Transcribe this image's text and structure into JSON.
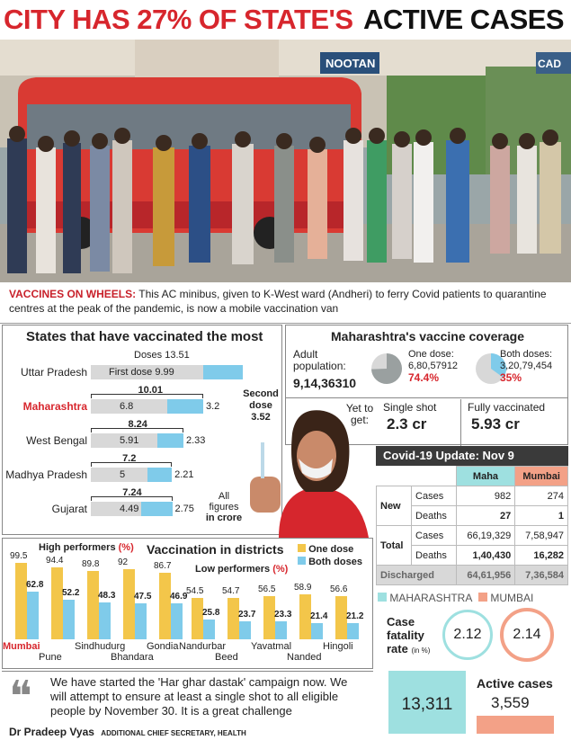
{
  "headline": {
    "red": "CITY HAS 27% OF STATE'S",
    "black": "ACTIVE CASES"
  },
  "photo": {
    "signs": [
      "NOOTAN",
      "CAD"
    ]
  },
  "caption": {
    "lead": "VACCINES ON WHEELS:",
    "text": " This AC minibus, given to K-West ward (Andheri) to ferry Covid patients to quarantine centres at the peak of the pandemic, is now a mobile vaccination van"
  },
  "states": {
    "title": "States that have vaccinated the most",
    "doses_label": "Doses 13.51",
    "first_label": "First dose 9.99",
    "second_label": [
      "Second",
      "dose",
      "3.52"
    ],
    "note": [
      "All",
      "figures",
      "in crore"
    ],
    "rows": [
      {
        "name": "Uttar Pradesh",
        "total": "",
        "first": 9.99,
        "second": 3.52,
        "first_txt": "",
        "second_txt": ""
      },
      {
        "name": "Maharashtra",
        "total": "10.01",
        "first": 6.8,
        "second": 3.2,
        "first_txt": "6.8",
        "second_txt": "3.2"
      },
      {
        "name": "West Bengal",
        "total": "8.24",
        "first": 5.91,
        "second": 2.33,
        "first_txt": "5.91",
        "second_txt": "2.33"
      },
      {
        "name": "Madhya Pradesh",
        "total": "7.2",
        "first": 5,
        "second": 2.21,
        "first_txt": "5",
        "second_txt": "2.21"
      },
      {
        "name": "Gujarat",
        "total": "7.24",
        "first": 4.49,
        "second": 2.75,
        "first_txt": "4.49",
        "second_txt": "2.75"
      }
    ]
  },
  "coverage": {
    "title": "Maharashtra's vaccine coverage",
    "adult_label": "Adult population:",
    "adult_val": "9,14,36310",
    "one_label": "One dose:",
    "one_val": "6,80,57912",
    "one_pct": "74.4%",
    "both_label": "Both doses:",
    "both_val": "3,20,79,454",
    "both_pct": "35%",
    "yet_label": "Yet to get:",
    "single_label": "Single shot",
    "single_val": "2.3 cr",
    "full_label": "Fully vaccinated",
    "full_val": "5.93 cr"
  },
  "covid": {
    "title": "Covid-19 Update: Nov 9",
    "col1": "Maha",
    "col2": "Mumbai",
    "new_label": "New",
    "total_label": "Total",
    "cases": "Cases",
    "deaths": "Deaths",
    "discharged": "Discharged",
    "new_cases": [
      "982",
      "274"
    ],
    "new_deaths": [
      "27",
      "1"
    ],
    "tot_cases": [
      "66,19,329",
      "7,58,947"
    ],
    "tot_deaths": [
      "1,40,430",
      "16,282"
    ],
    "disch": [
      "64,61,956",
      "7,36,584"
    ],
    "legend_maha": "MAHARASHTRA",
    "legend_mumbai": "MUMBAI",
    "cfr_label": [
      "Case",
      "fatality",
      "rate"
    ],
    "cfr_unit": "(in %)",
    "cfr_maha": "2.12",
    "cfr_mumbai": "2.14",
    "active_label": "Active cases",
    "active_maha": "13,311",
    "active_mumbai": "3,559"
  },
  "districts": {
    "title": "Vaccination in districts",
    "high": "High performers",
    "low": "Low performers",
    "pct": "(%)",
    "leg_one": "One dose",
    "leg_both": "Both doses",
    "high_items": [
      {
        "name": "Mumbai",
        "one": 99.5,
        "both": 62.8
      },
      {
        "name": "Pune",
        "one": 94.4,
        "both": 52.2
      },
      {
        "name": "Sindhudurg",
        "one": 89.8,
        "both": 48.3
      },
      {
        "name": "Bhandara",
        "one": 92,
        "both": 47.5
      },
      {
        "name": "Gondia",
        "one": 86.7,
        "both": 46.9
      }
    ],
    "low_items": [
      {
        "name": "Nandurbar",
        "one": 54.5,
        "both": 25.8
      },
      {
        "name": "Beed",
        "one": 54.7,
        "both": 23.7
      },
      {
        "name": "Yavatmal",
        "one": 56.5,
        "both": 23.3
      },
      {
        "name": "Nanded",
        "one": 58.9,
        "both": 21.4
      },
      {
        "name": "Hingoli",
        "one": 56.6,
        "both": 21.2
      }
    ]
  },
  "quote": {
    "text": "We have started the 'Har ghar dastak' campaign now. We will attempt to ensure at least a single shot to all eligible people by November 30. It is a great challenge",
    "author": "Dr Pradeep Vyas",
    "role": "ADDITIONAL CHIEF SECRETARY, HEALTH"
  },
  "colors": {
    "red": "#d7262d",
    "blue": "#7fcbea",
    "gold": "#f3c64a",
    "grey": "#d8d8d8",
    "teal": "#9ee0e0",
    "salmon": "#f3a187"
  }
}
